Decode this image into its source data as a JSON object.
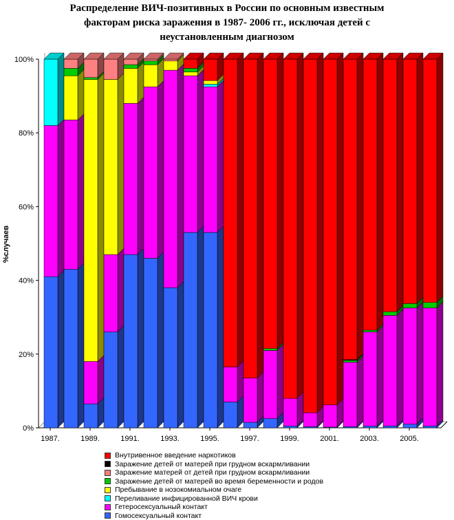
{
  "title_lines": [
    "Распределение ВИЧ-позитивных в России по основным известным",
    "факторам риска заражения в 1987- 2006 гг., исключая детей с",
    "неустановленным диагнозом"
  ],
  "chart_data": {
    "type": "bar",
    "stacked": true,
    "percent": true,
    "three_d": true,
    "ylabel": "%случаев",
    "ylim": [
      0,
      100
    ],
    "yticks": [
      "0%",
      "20%",
      "40%",
      "60%",
      "80%",
      "100%"
    ],
    "categories": [
      "1987.",
      "1988.",
      "1989.",
      "1990.",
      "1991.",
      "1992.",
      "1993.",
      "1994.",
      "1995.",
      "1996.",
      "1997.",
      "1998.",
      "1999.",
      "2000.",
      "2001.",
      "2002.",
      "2003.",
      "2004.",
      "2005.",
      "2006."
    ],
    "xtick_labels": [
      "1987.",
      "1989.",
      "1991.",
      "1993.",
      "1995.",
      "1997.",
      "1999.",
      "2001.",
      "2003.",
      "2005."
    ],
    "series": [
      {
        "name": "Гомосексуальный контакт",
        "color": "#3366ff",
        "values": [
          41,
          43,
          6.5,
          26,
          47,
          46,
          38,
          53,
          53,
          7,
          1.5,
          2.5,
          0.5,
          0.3,
          0.2,
          0.3,
          0.5,
          0.5,
          1,
          0.5
        ]
      },
      {
        "name": "Гетеросексуальный контакт",
        "color": "#ff00ff",
        "values": [
          41,
          40.5,
          11.5,
          21,
          41,
          46.5,
          59,
          42.5,
          39.5,
          9.5,
          12,
          18.5,
          7.5,
          3.8,
          6,
          17.5,
          25.5,
          30,
          31.5,
          32
        ]
      },
      {
        "name": "Переливание  инфицированной ВИЧ крови",
        "color": "#00ffff",
        "values": [
          18,
          0,
          0,
          0,
          0,
          0,
          0,
          0,
          0.7,
          0,
          0,
          0,
          0,
          0,
          0,
          0,
          0,
          0,
          0,
          0
        ]
      },
      {
        "name": "Пребывание в нозокомиальном очаге",
        "color": "#ffff00",
        "values": [
          0,
          12,
          76.5,
          47.5,
          9.5,
          6,
          2.5,
          1,
          1,
          0,
          0,
          0,
          0,
          0,
          0,
          0,
          0,
          0,
          0,
          0
        ]
      },
      {
        "name": "Заражение детей от матерей во время беременности и  родов",
        "color": "#00cc00",
        "values": [
          0,
          2,
          0.5,
          0,
          1,
          1,
          0,
          1,
          0,
          0,
          0,
          0.5,
          0,
          0,
          0,
          0.5,
          0.5,
          1,
          1.2,
          1.5
        ]
      },
      {
        "name": "Заражение матерей от детей при грудном вскармливании",
        "color": "#ff8080",
        "values": [
          0,
          2.5,
          5,
          5.5,
          1.5,
          0.5,
          0.5,
          0,
          0,
          0,
          0,
          0,
          0,
          0,
          0,
          0,
          0,
          0,
          0,
          0
        ]
      },
      {
        "name": "Заражение детей от матерей при грудном вскармливании",
        "color": "#000000",
        "values": [
          0,
          0,
          0,
          0,
          0,
          0,
          0,
          0,
          0,
          0,
          0,
          0,
          0,
          0,
          0,
          0.2,
          0,
          0,
          0,
          0
        ]
      },
      {
        "name": "Внутривенное введение наркотиков",
        "color": "#ff0000",
        "values": [
          0,
          0,
          0,
          0,
          0,
          0,
          0,
          2.5,
          5.8,
          83.5,
          86.5,
          78.5,
          92,
          95.9,
          93.8,
          81.5,
          73.5,
          68.5,
          66.3,
          66
        ]
      }
    ],
    "legend_order": [
      7,
      6,
      5,
      4,
      3,
      2,
      1,
      0
    ],
    "legend_position": "bottom",
    "grid": false
  }
}
